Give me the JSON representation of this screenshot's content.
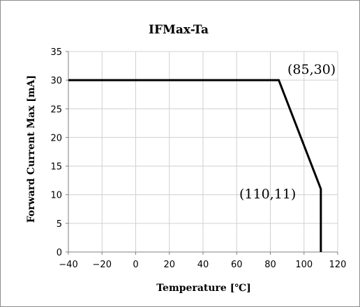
{
  "chart_data": {
    "type": "line",
    "title": "IFMax-Ta",
    "xlabel": "Temperature [℃]",
    "ylabel": "Forward Current Max [mA]",
    "xlim": [
      -40,
      120
    ],
    "ylim": [
      0,
      35
    ],
    "xticks": [
      -40,
      -20,
      0,
      20,
      40,
      60,
      80,
      100,
      120
    ],
    "yticks": [
      0,
      5,
      10,
      15,
      20,
      25,
      30,
      35
    ],
    "grid": true,
    "series": [
      {
        "x": [
          -40,
          85,
          110,
          110
        ],
        "y": [
          30,
          30,
          11,
          0
        ]
      }
    ],
    "annotations": [
      {
        "text": "(85,30)",
        "x": 85,
        "y": 30
      },
      {
        "text": "(110,11)",
        "x": 110,
        "y": 11
      }
    ]
  }
}
